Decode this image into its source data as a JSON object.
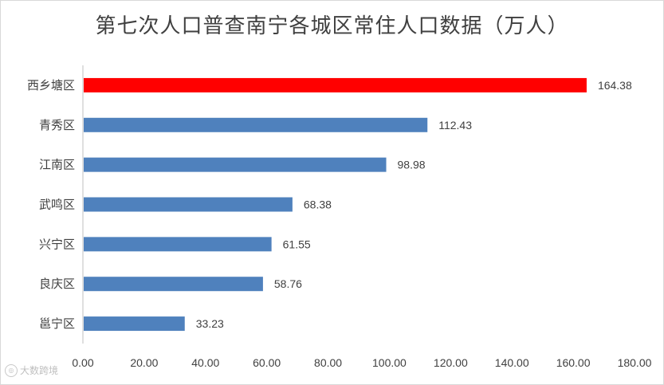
{
  "chart_data": {
    "type": "bar",
    "orientation": "horizontal",
    "title": "第七次人口普查南宁各城区常住人口数据（万人）",
    "categories": [
      "西乡塘区",
      "青秀区",
      "江南区",
      "武鸣区",
      "兴宁区",
      "良庆区",
      "邕宁区"
    ],
    "values": [
      164.38,
      112.43,
      98.98,
      68.38,
      61.55,
      58.76,
      33.23
    ],
    "value_labels": [
      "164.38",
      "112.43",
      "98.98",
      "68.38",
      "61.55",
      "58.76",
      "33.23"
    ],
    "xlim": [
      0,
      180
    ],
    "x_ticks": [
      "0.00",
      "20.00",
      "40.00",
      "60.00",
      "80.00",
      "100.00",
      "120.00",
      "140.00",
      "160.00",
      "180.00"
    ],
    "bar_colors": [
      "#ff0000",
      "#4f81bd",
      "#4f81bd",
      "#4f81bd",
      "#4f81bd",
      "#4f81bd",
      "#4f81bd"
    ],
    "grid": false,
    "legend": "none"
  },
  "watermark": {
    "text": "大数跨境"
  }
}
